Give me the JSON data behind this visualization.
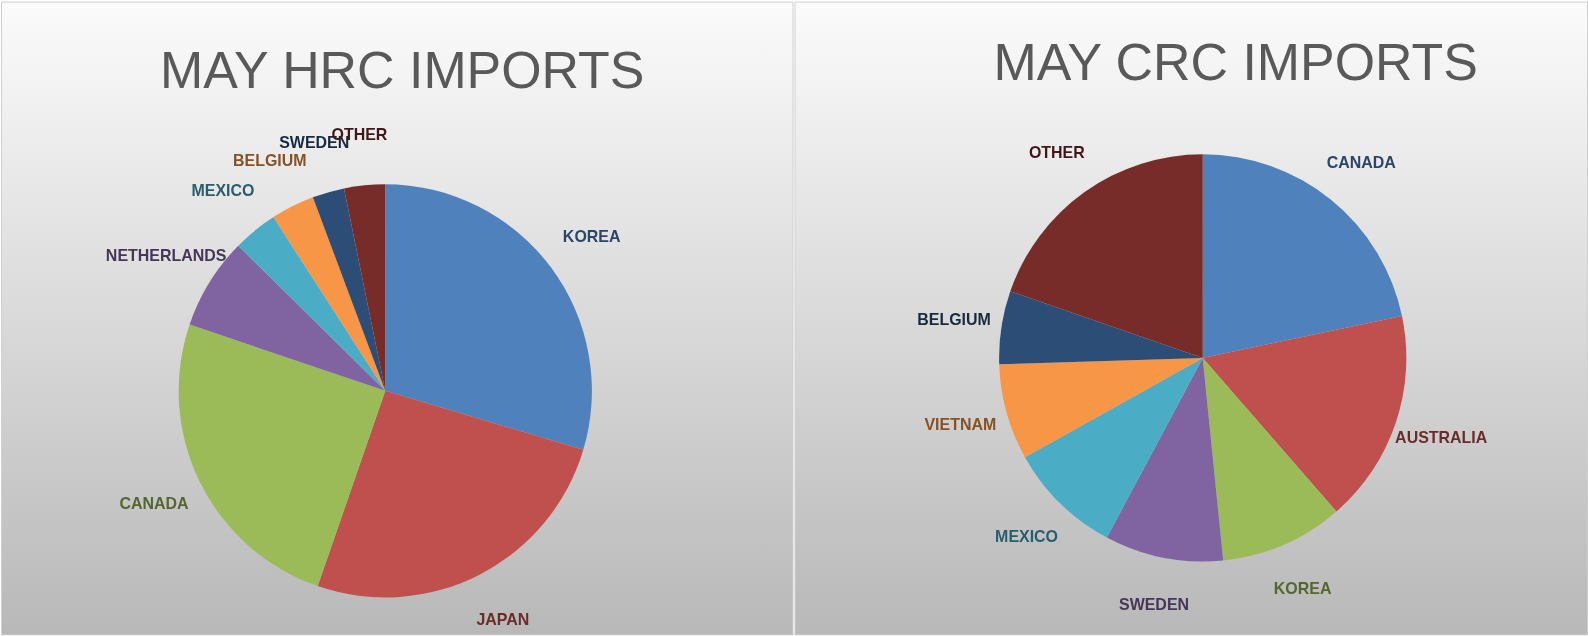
{
  "chart_data": [
    {
      "type": "pie",
      "title": "MAY HRC IMPORTS",
      "categories": [
        "KOREA",
        "JAPAN",
        "CANADA",
        "NETHERLANDS",
        "MEXICO",
        "BELGIUM",
        "SWEDEN",
        "OTHER"
      ],
      "values": [
        29.6,
        25.7,
        24.9,
        7.2,
        3.5,
        3.4,
        2.5,
        3.2
      ],
      "colors": [
        "#4f81bd",
        "#c0504d",
        "#9bbb59",
        "#8064a2",
        "#4bacc6",
        "#f79646",
        "#2c4d75",
        "#772c2a"
      ]
    },
    {
      "type": "pie",
      "title": "MAY CRC IMPORTS",
      "categories": [
        "CANADA",
        "AUSTRALIA",
        "KOREA",
        "SWEDEN",
        "MEXICO",
        "VIETNAM",
        "BELGIUM",
        "OTHER"
      ],
      "values": [
        21.7,
        16.9,
        9.8,
        9.4,
        9.1,
        7.6,
        5.8,
        19.7
      ],
      "colors": [
        "#4f81bd",
        "#c0504d",
        "#9bbb59",
        "#8064a2",
        "#4bacc6",
        "#f79646",
        "#2c4d75",
        "#772c2a"
      ]
    }
  ]
}
